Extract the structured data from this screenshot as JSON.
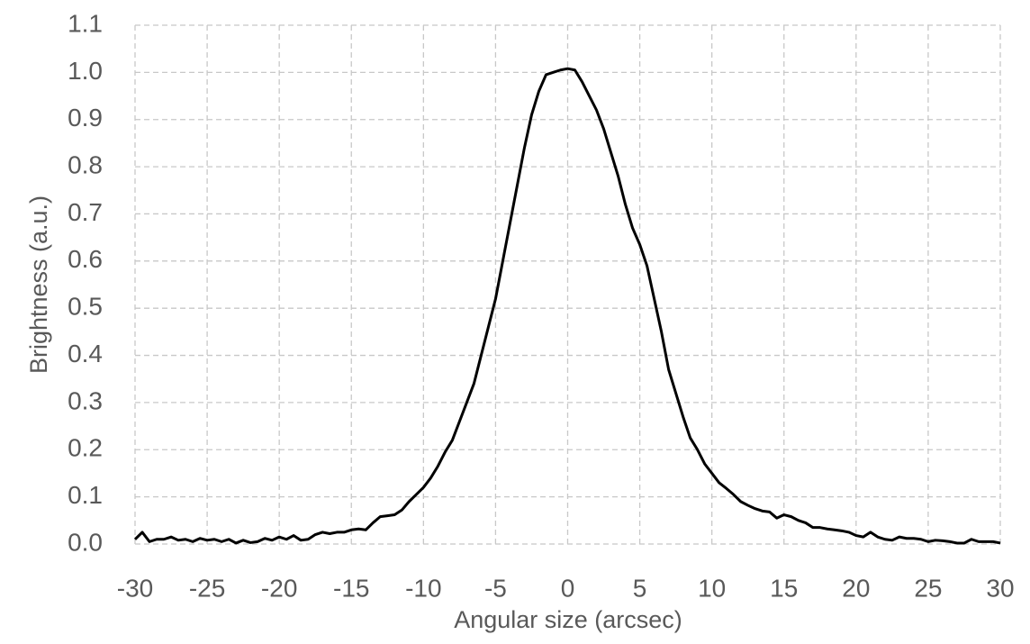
{
  "chart_data": {
    "type": "line",
    "x_label": "Angular size (arcsec)",
    "y_label": "Brightness (a.u.)",
    "x": [
      -30,
      -29.5,
      -29,
      -28.5,
      -28,
      -27.5,
      -27,
      -26.5,
      -26,
      -25.5,
      -25,
      -24.5,
      -24,
      -23.5,
      -23,
      -22.5,
      -22,
      -21.5,
      -21,
      -20.5,
      -20,
      -19.5,
      -19,
      -18.5,
      -18,
      -17.5,
      -17,
      -16.5,
      -16,
      -15.5,
      -15,
      -14.5,
      -14,
      -13.5,
      -13,
      -12.5,
      -12,
      -11.5,
      -11,
      -10.5,
      -10,
      -9.5,
      -9,
      -8.5,
      -8,
      -7.5,
      -7,
      -6.5,
      -6,
      -5.5,
      -5,
      -4.5,
      -4,
      -3.5,
      -3,
      -2.5,
      -2,
      -1.5,
      -1,
      -0.5,
      0,
      0.5,
      1,
      1.5,
      2,
      2.5,
      3,
      3.5,
      4,
      4.5,
      5,
      5.5,
      6,
      6.5,
      7,
      7.5,
      8,
      8.5,
      9,
      9.5,
      10,
      10.5,
      11,
      11.5,
      12,
      12.5,
      13,
      13.5,
      14,
      14.5,
      15,
      15.5,
      16,
      16.5,
      17,
      17.5,
      18,
      18.5,
      19,
      19.5,
      20,
      20.5,
      21,
      21.5,
      22,
      22.5,
      23,
      23.5,
      24,
      24.5,
      25,
      25.5,
      26,
      26.5,
      27,
      27.5,
      28,
      28.5,
      29,
      29.5,
      30
    ],
    "values": [
      0.01,
      0.025,
      0.005,
      0.01,
      0.01,
      0.015,
      0.008,
      0.01,
      0.005,
      0.012,
      0.008,
      0.01,
      0.005,
      0.01,
      0.002,
      0.008,
      0.003,
      0.005,
      0.012,
      0.008,
      0.015,
      0.01,
      0.018,
      0.008,
      0.01,
      0.02,
      0.025,
      0.022,
      0.025,
      0.025,
      0.03,
      0.032,
      0.03,
      0.045,
      0.058,
      0.06,
      0.062,
      0.072,
      0.09,
      0.105,
      0.12,
      0.14,
      0.165,
      0.195,
      0.22,
      0.26,
      0.3,
      0.34,
      0.4,
      0.46,
      0.52,
      0.6,
      0.68,
      0.76,
      0.84,
      0.91,
      0.96,
      0.995,
      1.0,
      1.005,
      1.008,
      1.005,
      0.98,
      0.95,
      0.92,
      0.88,
      0.83,
      0.78,
      0.72,
      0.67,
      0.635,
      0.59,
      0.52,
      0.45,
      0.37,
      0.32,
      0.27,
      0.225,
      0.2,
      0.17,
      0.15,
      0.13,
      0.118,
      0.105,
      0.09,
      0.082,
      0.075,
      0.07,
      0.068,
      0.055,
      0.062,
      0.058,
      0.05,
      0.045,
      0.035,
      0.035,
      0.032,
      0.03,
      0.028,
      0.025,
      0.018,
      0.015,
      0.025,
      0.015,
      0.01,
      0.008,
      0.015,
      0.012,
      0.012,
      0.01,
      0.005,
      0.008,
      0.007,
      0.005,
      0.002,
      0.002,
      0.01,
      0.005,
      0.005,
      0.005,
      0.002
    ],
    "color": "#000000",
    "xlim": [
      -30,
      30
    ],
    "xticks": [
      -30,
      -25,
      -20,
      -15,
      -10,
      -5,
      0,
      5,
      10,
      15,
      20,
      25,
      30
    ],
    "ylim": [
      0,
      1.1
    ],
    "yticks": [
      {
        "value": 0,
        "label": "0.0"
      },
      0.1,
      0.2,
      0.3,
      0.4,
      0.5,
      0.6,
      0.7,
      0.8,
      0.9,
      {
        "value": 1,
        "label": "1.0"
      },
      1.1
    ],
    "grid": true
  }
}
